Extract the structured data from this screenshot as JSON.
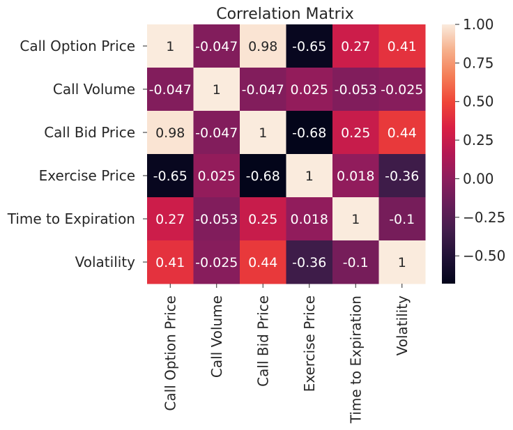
{
  "chart_data": {
    "type": "heatmap",
    "title": "Correlation Matrix",
    "row_labels": [
      "Call Option Price",
      "Call Volume",
      "Call Bid Price",
      "Exercise Price",
      "Time to Expiration",
      "Volatility"
    ],
    "col_labels": [
      "Call Option Price",
      "Call Volume",
      "Call Bid Price",
      "Exercise Price",
      "Time to Expiration",
      "Volatility"
    ],
    "values": [
      [
        1,
        -0.047,
        0.98,
        -0.65,
        0.27,
        0.41
      ],
      [
        -0.047,
        1,
        -0.047,
        0.025,
        -0.053,
        -0.025
      ],
      [
        0.98,
        -0.047,
        1,
        -0.68,
        0.25,
        0.44
      ],
      [
        -0.65,
        0.025,
        -0.68,
        1,
        0.018,
        -0.36
      ],
      [
        0.27,
        -0.053,
        0.25,
        0.018,
        1,
        -0.1
      ],
      [
        0.41,
        -0.025,
        0.44,
        -0.36,
        -0.1,
        1
      ]
    ],
    "annotations": [
      [
        "1",
        "-0.047",
        "0.98",
        "-0.65",
        "0.27",
        "0.41"
      ],
      [
        "-0.047",
        "1",
        "-0.047",
        "0.025",
        "-0.053",
        "-0.025"
      ],
      [
        "0.98",
        "-0.047",
        "1",
        "-0.68",
        "0.25",
        "0.44"
      ],
      [
        "-0.65",
        "0.025",
        "-0.68",
        "1",
        "0.018",
        "-0.36"
      ],
      [
        "0.27",
        "-0.053",
        "0.25",
        "0.018",
        "1",
        "-0.1"
      ],
      [
        "0.41",
        "-0.025",
        "0.44",
        "-0.36",
        "-0.1",
        "1"
      ]
    ],
    "colorbar": {
      "vmin": -0.68,
      "vmax": 1.0,
      "colormap": "rocket",
      "ticks": [
        1.0,
        0.75,
        0.5,
        0.25,
        0.0,
        -0.25,
        -0.5
      ],
      "tick_labels": [
        "1.00",
        "0.75",
        "0.50",
        "0.25",
        "0.00",
        "−0.25",
        "−0.50"
      ]
    },
    "legend": "right"
  }
}
